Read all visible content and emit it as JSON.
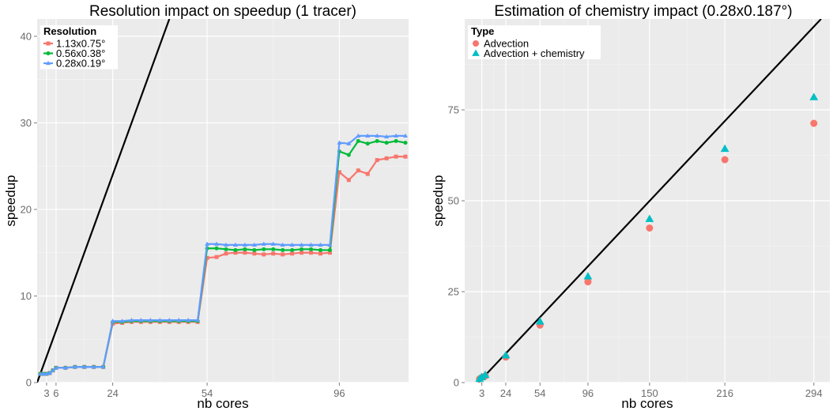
{
  "chart_data": [
    {
      "type": "line",
      "title": "Resolution impact on speedup (1 tracer)",
      "xlabel": "nb cores",
      "ylabel": "speedup",
      "xlim": [
        0,
        118
      ],
      "ylim": [
        0,
        42
      ],
      "x_ticks": [
        3,
        6,
        24,
        54,
        96
      ],
      "x_tick_labels": [
        "3",
        "6",
        "24",
        "54",
        "96"
      ],
      "x_minor_gridlines": [
        1,
        2,
        3,
        4,
        5,
        6,
        15,
        39,
        75
      ],
      "y_ticks": [
        0,
        10,
        20,
        30,
        40
      ],
      "y_tick_labels": [
        "0",
        "10",
        "20",
        "30",
        "40"
      ],
      "grid": true,
      "legend": {
        "title": "Resolution",
        "position": "top-left"
      },
      "reference_line": {
        "slope": 1,
        "color": "#000000"
      },
      "x": [
        1,
        2,
        3,
        4,
        5,
        6,
        9,
        12,
        15,
        18,
        21,
        24,
        27,
        30,
        33,
        36,
        39,
        42,
        45,
        48,
        51,
        54,
        57,
        60,
        63,
        66,
        69,
        72,
        75,
        78,
        81,
        84,
        87,
        90,
        93,
        96,
        99,
        102,
        105,
        108,
        111,
        114,
        117
      ],
      "series": [
        {
          "name": "1.13x0.75°",
          "color": "#f8766d",
          "marker": "square",
          "values": [
            1.0,
            1.0,
            1.0,
            1.1,
            1.4,
            1.7,
            1.7,
            1.8,
            1.8,
            1.8,
            1.8,
            6.8,
            6.9,
            7.0,
            7.0,
            7.0,
            7.0,
            7.0,
            7.0,
            7.0,
            7.0,
            14.4,
            14.5,
            14.9,
            15.0,
            15.0,
            14.9,
            14.8,
            14.9,
            14.8,
            14.9,
            15.0,
            15.0,
            14.9,
            15.0,
            24.3,
            23.4,
            24.5,
            24.1,
            25.7,
            25.9,
            26.1,
            26.1
          ]
        },
        {
          "name": "0.56x0.38°",
          "color": "#00ba38",
          "marker": "circle",
          "values": [
            1.0,
            1.0,
            1.0,
            1.1,
            1.4,
            1.7,
            1.7,
            1.8,
            1.8,
            1.8,
            1.8,
            7.0,
            7.0,
            7.1,
            7.1,
            7.1,
            7.1,
            7.1,
            7.1,
            7.1,
            7.1,
            15.5,
            15.5,
            15.4,
            15.3,
            15.4,
            15.3,
            15.4,
            15.4,
            15.3,
            15.3,
            15.4,
            15.4,
            15.3,
            15.3,
            26.7,
            26.3,
            27.9,
            27.6,
            27.9,
            27.7,
            27.9,
            27.7
          ]
        },
        {
          "name": "0.28x0.19°",
          "color": "#619cff",
          "marker": "triangle",
          "values": [
            1.0,
            1.0,
            1.0,
            1.1,
            1.4,
            1.7,
            1.7,
            1.8,
            1.8,
            1.8,
            1.8,
            7.1,
            7.1,
            7.2,
            7.2,
            7.2,
            7.2,
            7.2,
            7.2,
            7.2,
            7.2,
            16.0,
            16.0,
            15.9,
            15.9,
            15.9,
            15.9,
            16.0,
            16.0,
            15.9,
            15.9,
            15.9,
            15.9,
            15.9,
            15.9,
            27.7,
            27.6,
            28.5,
            28.5,
            28.5,
            28.4,
            28.5,
            28.5
          ]
        }
      ]
    },
    {
      "type": "scatter",
      "title": "Estimation of chemistry impact (0.28x0.187°)",
      "xlabel": "nb cores",
      "ylabel": "speedup",
      "xlim": [
        -12,
        308
      ],
      "ylim": [
        0,
        100
      ],
      "x_ticks": [
        3,
        24,
        54,
        96,
        150,
        216,
        294
      ],
      "x_tick_labels": [
        "3",
        "24",
        "54",
        "96",
        "150",
        "216",
        "294"
      ],
      "y_ticks": [
        0,
        25,
        50,
        75
      ],
      "y_tick_labels": [
        "0",
        "25",
        "50",
        "75"
      ],
      "grid": true,
      "legend": {
        "title": "Type",
        "position": "top-left"
      },
      "reference_line": {
        "slope": 0.333,
        "color": "#000000"
      },
      "series": [
        {
          "name": "Advection",
          "color": "#f8766d",
          "marker": "circle",
          "x": [
            1,
            3,
            6,
            24,
            54,
            96,
            150,
            216,
            294
          ],
          "y": [
            1.0,
            1.4,
            1.8,
            7.0,
            15.8,
            27.7,
            42.5,
            61.3,
            71.3
          ]
        },
        {
          "name": "Advection + chemistry",
          "color": "#00bfc4",
          "marker": "triangle",
          "x": [
            1,
            3,
            6,
            24,
            54,
            96,
            150,
            216,
            294
          ],
          "y": [
            1.0,
            1.5,
            2.1,
            7.5,
            16.8,
            29.2,
            45.0,
            64.3,
            78.5
          ]
        }
      ]
    }
  ]
}
